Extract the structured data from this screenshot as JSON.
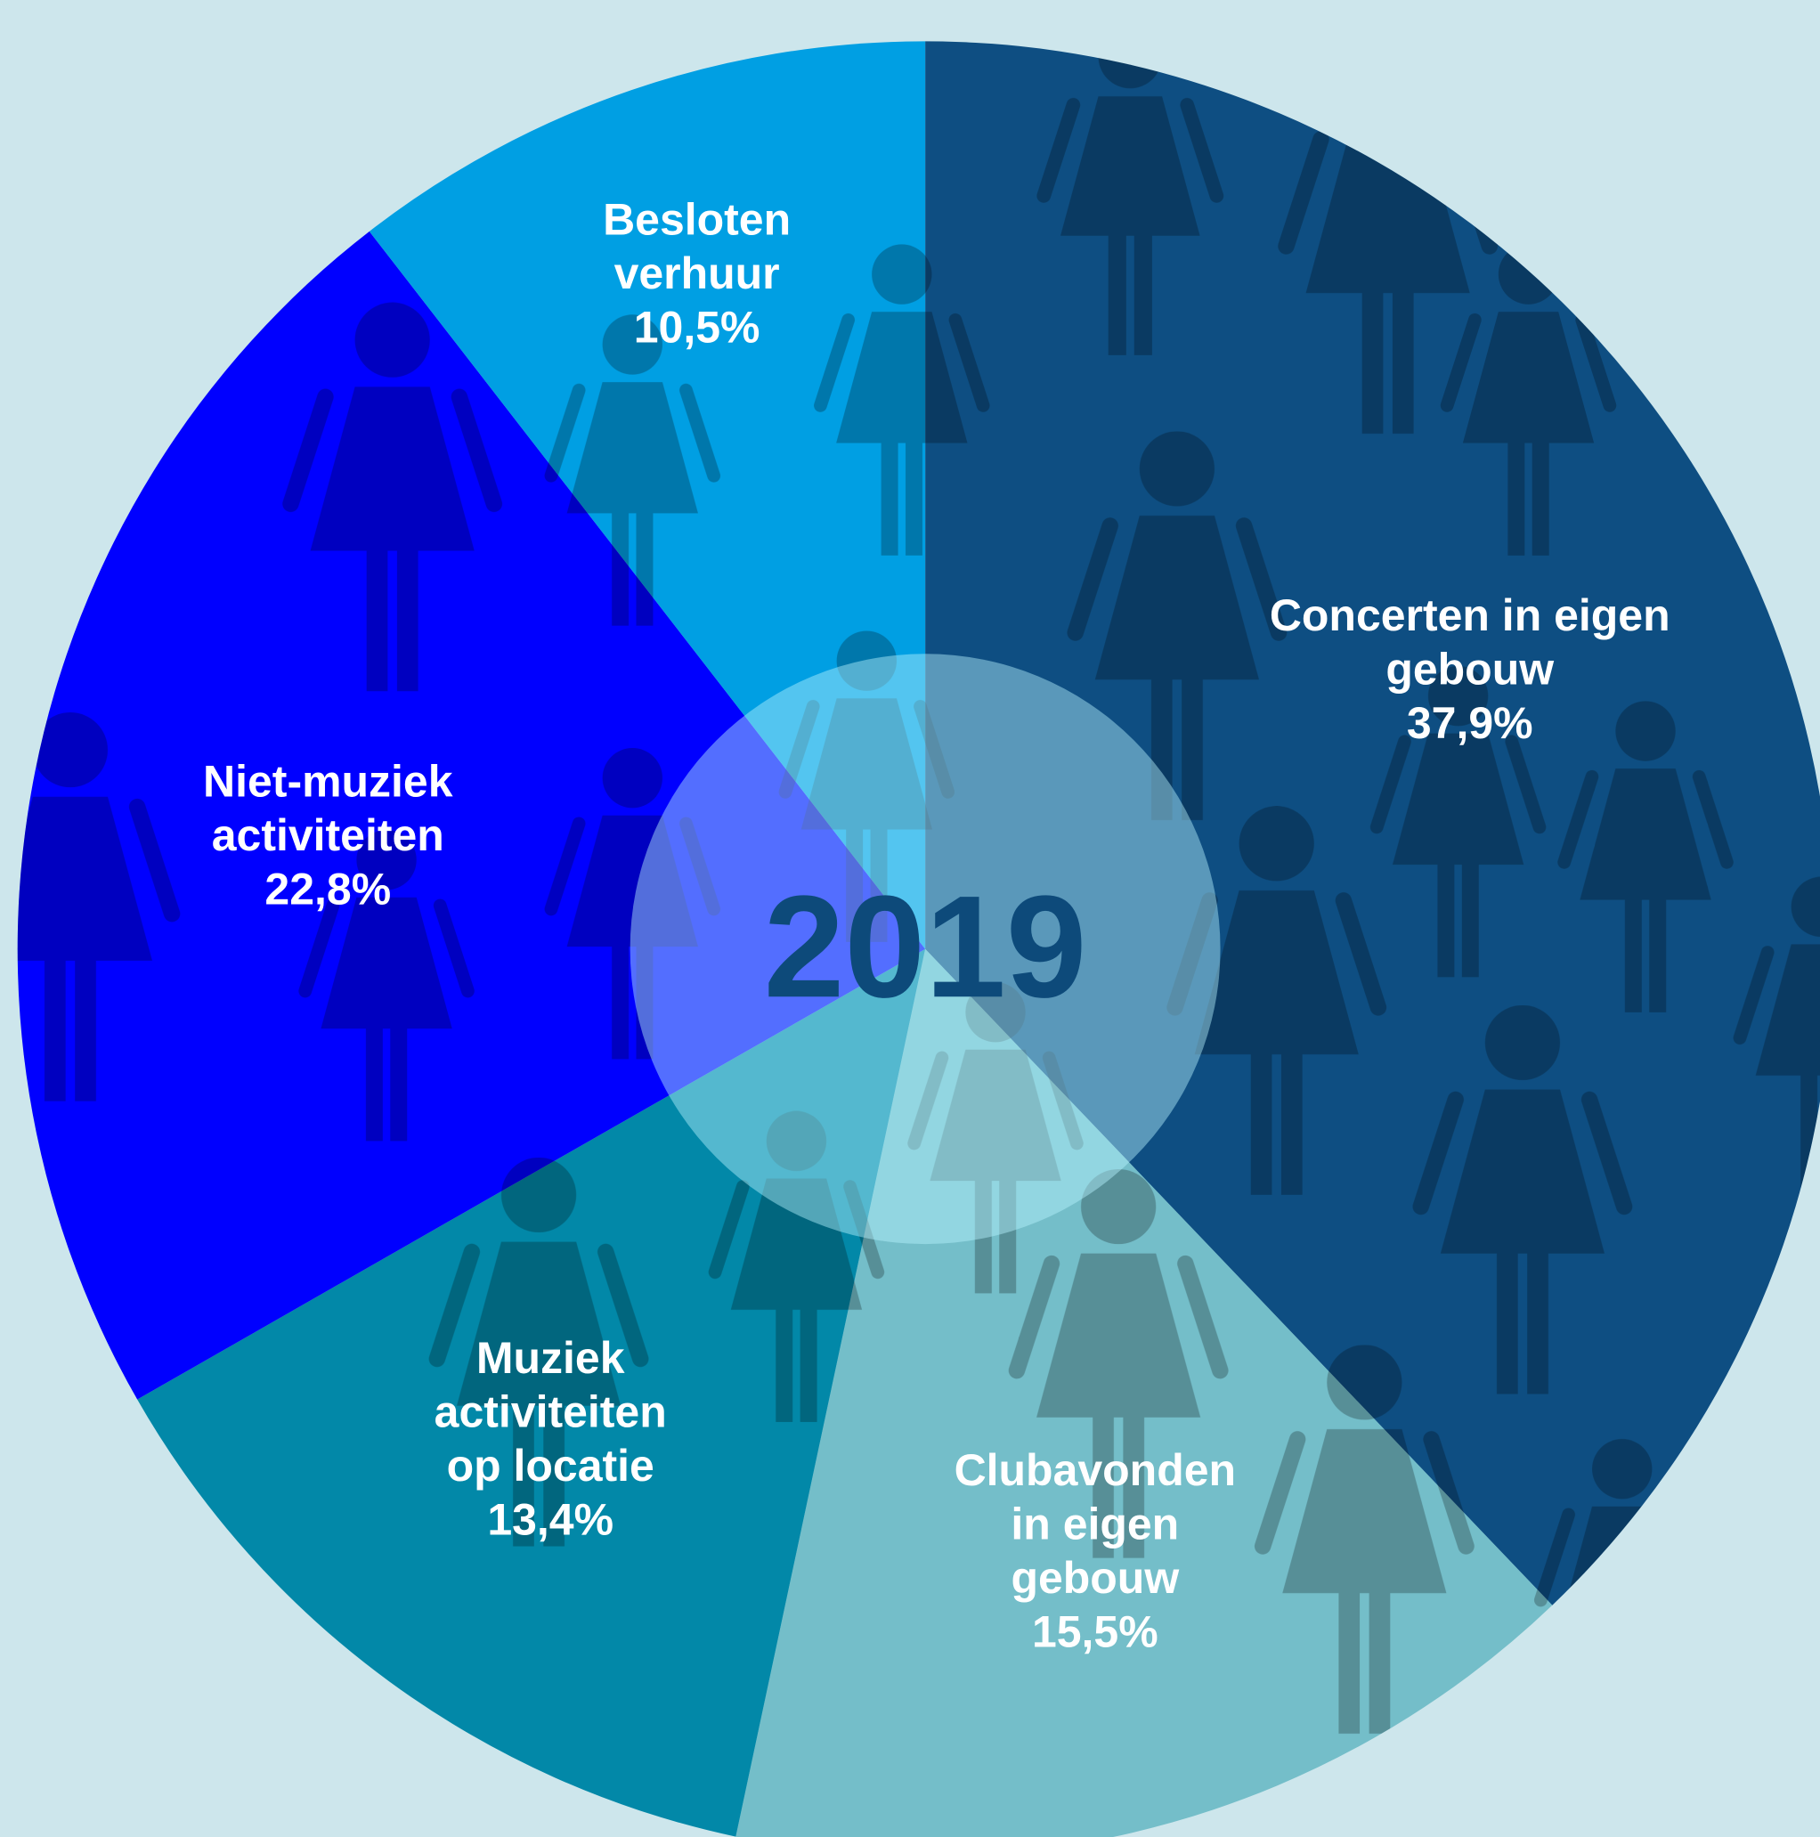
{
  "chart_data": {
    "type": "pie",
    "title": "2019",
    "categories": [
      [
        "Concerten in eigen",
        "gebouw"
      ],
      [
        "Clubavonden",
        "in eigen",
        "gebouw"
      ],
      [
        "Muziek",
        "activiteiten",
        "op locatie"
      ],
      [
        "Niet-muziek",
        "activiteiten"
      ],
      [
        "Besloten",
        "verhuur"
      ]
    ],
    "values": [
      37.9,
      15.5,
      13.4,
      22.8,
      10.5
    ],
    "value_labels": [
      "37,9%",
      "15,5%",
      "13,4%",
      "22,8%",
      "10,5%"
    ],
    "colors": [
      "#0e4e82",
      "#74bec9",
      "#0288a8",
      "#0000ff",
      "#009fe3"
    ]
  }
}
